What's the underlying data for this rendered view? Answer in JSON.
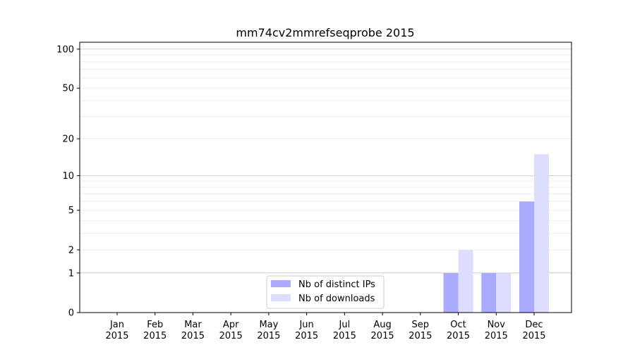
{
  "chart_data": {
    "type": "bar",
    "title": "mm74cv2mmrefseqprobe 2015",
    "xlabel": "",
    "ylabel": "",
    "yscale": "log(1+y)",
    "ylim": [
      0,
      113
    ],
    "grid": true,
    "legend_placement": "lower-center",
    "categories": [
      "Jan\n2015",
      "Feb\n2015",
      "Mar\n2015",
      "Apr\n2015",
      "May\n2015",
      "Jun\n2015",
      "Jul\n2015",
      "Aug\n2015",
      "Sep\n2015",
      "Oct\n2015",
      "Nov\n2015",
      "Dec\n2015"
    ],
    "yticks": [
      0,
      1,
      2,
      5,
      10,
      20,
      50,
      100
    ],
    "series": [
      {
        "name": "Nb of distinct IPs",
        "color": "#aaaaff",
        "values": [
          0,
          0,
          0,
          0,
          0,
          0,
          0,
          0,
          0,
          1,
          1,
          6
        ]
      },
      {
        "name": "Nb of downloads",
        "color": "#ddddff",
        "values": [
          0,
          0,
          0,
          0,
          0,
          0,
          0,
          0,
          0,
          2,
          1,
          15
        ]
      }
    ]
  }
}
